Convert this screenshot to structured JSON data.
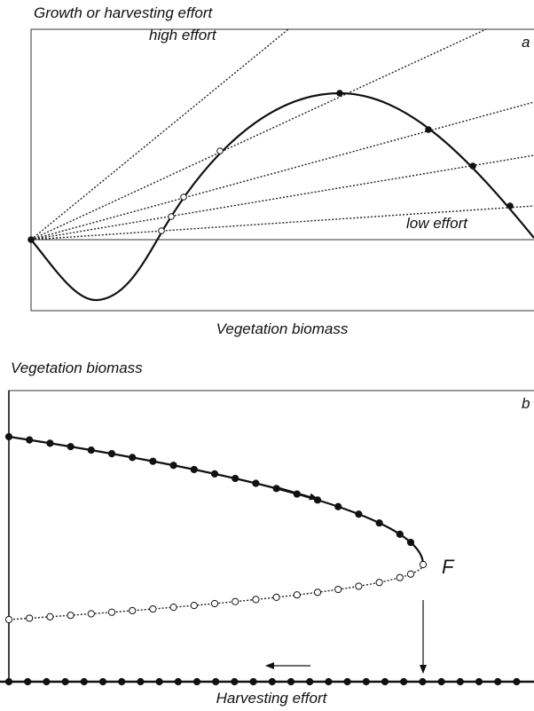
{
  "panel_a": {
    "y_label": "Growth or harvesting effort",
    "letter": "a",
    "high_label": "high effort",
    "low_label": "low effort",
    "x_label": "Vegetation biomass"
  },
  "panel_b": {
    "y_label": "Vegetation biomass",
    "letter": "b",
    "fold_label": "F",
    "x_label": "Harvesting effort"
  }
}
